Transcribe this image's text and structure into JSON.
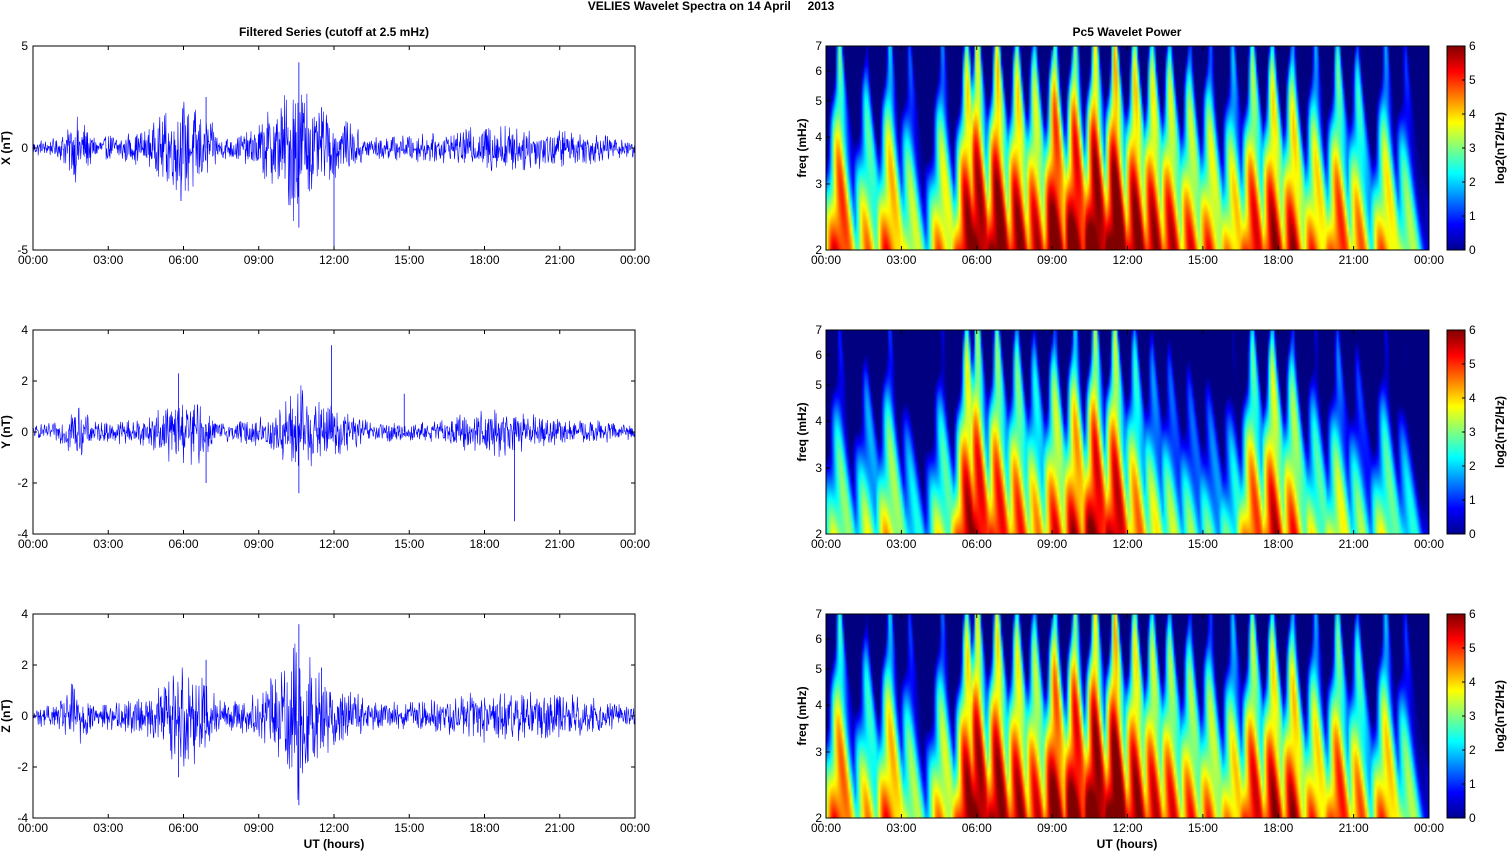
{
  "figure": {
    "suptitle": "VELIES Wavelet Spectra on 14 April     2013",
    "left_title": "Filtered Series (cutoff at 2.5 mHz)",
    "right_title": "Pc5 Wavelet Power",
    "xlabel": "UT (hours)",
    "colorbar_label": "log2(nT2/Hz)",
    "colormap": "jet"
  },
  "chart_data": [
    {
      "type": "line",
      "name": "x-filtered-series",
      "ylabel": "X (nT)",
      "ylim": [
        -5,
        5
      ],
      "yticks": [
        -5,
        0,
        5
      ],
      "xlim": [
        0,
        24
      ],
      "xticks": [
        "00:00",
        "03:00",
        "06:00",
        "09:00",
        "12:00",
        "15:00",
        "18:00",
        "21:00",
        "00:00"
      ],
      "color": "#0000ff",
      "envelope_hours": [
        0,
        1.0,
        1.7,
        2.5,
        4.5,
        5.9,
        6.6,
        7.5,
        8.5,
        9.8,
        10.6,
        11.3,
        12.0,
        13.5,
        15.0,
        16.5,
        17.5,
        18.5,
        19.5,
        21.0,
        22.5,
        24
      ],
      "envelope_amp_nT": [
        0.4,
        0.5,
        1.9,
        0.6,
        0.9,
        2.6,
        2.3,
        0.6,
        0.8,
        2.4,
        4.2,
        2.0,
        1.7,
        0.6,
        0.7,
        0.8,
        1.1,
        1.4,
        1.2,
        1.0,
        0.8,
        0.5
      ],
      "spikes": [
        [
          10.6,
          4.2
        ],
        [
          10.6,
          -3.9
        ],
        [
          12.0,
          -5.0
        ],
        [
          5.9,
          -2.6
        ],
        [
          6.9,
          2.5
        ],
        [
          11.5,
          2.0
        ]
      ]
    },
    {
      "type": "heatmap",
      "name": "x-wavelet-power",
      "ylabel": "freq (mHz)",
      "ylim": [
        2,
        7
      ],
      "yticks": [
        2,
        3,
        4,
        5,
        6,
        7
      ],
      "yscale": "log",
      "xlim": [
        0,
        24
      ],
      "xticks": [
        "00:00",
        "03:00",
        "06:00",
        "09:00",
        "12:00",
        "15:00",
        "18:00",
        "21:00",
        "00:00"
      ],
      "colorbar_range": [
        0,
        6
      ],
      "colorbar_ticks": [
        0,
        1,
        2,
        3,
        4,
        5,
        6
      ],
      "power_peaks_hours": [
        0.5,
        1.6,
        2.5,
        3.3,
        4.6,
        5.6,
        6.0,
        6.8,
        7.6,
        8.3,
        9.1,
        9.9,
        10.7,
        11.5,
        12.3,
        13.0,
        13.7,
        14.5,
        15.3,
        16.2,
        17.0,
        17.8,
        18.6,
        19.5,
        20.4,
        21.2,
        22.3,
        23.1
      ],
      "power_peaks_log2": [
        5.5,
        4.2,
        5.0,
        3.8,
        4.5,
        6.0,
        6.5,
        6.5,
        6.0,
        5.5,
        6.5,
        6.5,
        6.8,
        6.8,
        6.2,
        5.8,
        5.5,
        5.0,
        4.8,
        4.5,
        5.5,
        5.8,
        5.5,
        4.8,
        5.2,
        4.5,
        4.6,
        3.5
      ]
    },
    {
      "type": "line",
      "name": "y-filtered-series",
      "ylabel": "Y (nT)",
      "ylim": [
        -4,
        4
      ],
      "yticks": [
        -4,
        -2,
        0,
        2,
        4
      ],
      "xlim": [
        0,
        24
      ],
      "xticks": [
        "00:00",
        "03:00",
        "06:00",
        "09:00",
        "12:00",
        "15:00",
        "18:00",
        "21:00",
        "00:00"
      ],
      "color": "#0000ff",
      "envelope_hours": [
        0,
        1.0,
        1.7,
        2.5,
        4.5,
        5.9,
        6.6,
        7.5,
        8.5,
        9.8,
        10.6,
        11.3,
        12.0,
        13.5,
        15.0,
        16.5,
        17.5,
        18.5,
        19.5,
        21.0,
        22.5,
        24
      ],
      "envelope_amp_nT": [
        0.3,
        0.4,
        1.2,
        0.4,
        0.6,
        1.5,
        1.3,
        0.4,
        0.5,
        1.0,
        2.0,
        1.3,
        1.1,
        0.4,
        0.4,
        0.5,
        0.9,
        1.0,
        0.8,
        0.5,
        0.5,
        0.3
      ],
      "spikes": [
        [
          11.9,
          3.4
        ],
        [
          10.6,
          -2.4
        ],
        [
          19.2,
          -3.5
        ],
        [
          6.9,
          -2.0
        ],
        [
          5.8,
          2.3
        ],
        [
          14.8,
          1.5
        ]
      ]
    },
    {
      "type": "heatmap",
      "name": "y-wavelet-power",
      "ylabel": "freq (mHz)",
      "ylim": [
        2,
        7
      ],
      "yticks": [
        2,
        3,
        4,
        5,
        6,
        7
      ],
      "yscale": "log",
      "xlim": [
        0,
        24
      ],
      "xticks": [
        "00:00",
        "03:00",
        "06:00",
        "09:00",
        "12:00",
        "15:00",
        "18:00",
        "21:00",
        "00:00"
      ],
      "colorbar_range": [
        0,
        6
      ],
      "colorbar_ticks": [
        0,
        1,
        2,
        3,
        4,
        5,
        6
      ],
      "power_peaks_hours": [
        0.5,
        1.6,
        2.5,
        3.3,
        4.6,
        5.6,
        6.0,
        6.8,
        7.6,
        8.3,
        9.1,
        9.9,
        10.7,
        11.5,
        12.3,
        13.0,
        13.7,
        14.5,
        15.3,
        16.2,
        17.0,
        17.8,
        18.6,
        19.5,
        20.4,
        21.2,
        22.3,
        23.1
      ],
      "power_peaks_log2": [
        3.5,
        3.2,
        4.0,
        2.5,
        3.5,
        5.8,
        6.0,
        5.5,
        5.0,
        4.2,
        5.0,
        5.5,
        6.2,
        6.0,
        4.6,
        3.6,
        3.2,
        2.8,
        2.6,
        2.8,
        5.0,
        5.5,
        4.8,
        3.5,
        3.8,
        3.0,
        3.5,
        2.5
      ]
    },
    {
      "type": "line",
      "name": "z-filtered-series",
      "ylabel": "Z (nT)",
      "ylim": [
        -4,
        4
      ],
      "yticks": [
        -4,
        -2,
        0,
        2,
        4
      ],
      "xlim": [
        0,
        24
      ],
      "xticks": [
        "00:00",
        "03:00",
        "06:00",
        "09:00",
        "12:00",
        "15:00",
        "18:00",
        "21:00",
        "00:00"
      ],
      "color": "#0000ff",
      "envelope_hours": [
        0,
        1.0,
        1.7,
        2.5,
        4.5,
        5.9,
        6.6,
        7.5,
        8.5,
        9.8,
        10.6,
        11.3,
        12.0,
        13.5,
        15.0,
        16.5,
        17.5,
        18.5,
        19.5,
        21.0,
        22.5,
        24
      ],
      "envelope_amp_nT": [
        0.4,
        0.5,
        1.6,
        0.5,
        0.8,
        2.2,
        2.0,
        0.6,
        0.7,
        1.8,
        3.4,
        1.8,
        1.4,
        0.6,
        0.6,
        0.8,
        1.0,
        1.2,
        1.0,
        1.0,
        0.7,
        0.4
      ],
      "spikes": [
        [
          10.6,
          3.6
        ],
        [
          10.6,
          -3.5
        ],
        [
          5.8,
          -2.4
        ],
        [
          6.9,
          2.2
        ],
        [
          11.5,
          1.9
        ]
      ]
    },
    {
      "type": "heatmap",
      "name": "z-wavelet-power",
      "ylabel": "freq (mHz)",
      "ylim": [
        2,
        7
      ],
      "yticks": [
        2,
        3,
        4,
        5,
        6,
        7
      ],
      "yscale": "log",
      "xlim": [
        0,
        24
      ],
      "xticks": [
        "00:00",
        "03:00",
        "06:00",
        "09:00",
        "12:00",
        "15:00",
        "18:00",
        "21:00",
        "00:00"
      ],
      "colorbar_range": [
        0,
        6
      ],
      "colorbar_ticks": [
        0,
        1,
        2,
        3,
        4,
        5,
        6
      ],
      "power_peaks_hours": [
        0.5,
        1.6,
        2.5,
        3.3,
        4.6,
        5.6,
        6.0,
        6.8,
        7.6,
        8.3,
        9.1,
        9.9,
        10.7,
        11.5,
        12.3,
        13.0,
        13.7,
        14.5,
        15.3,
        16.2,
        17.0,
        17.8,
        18.6,
        19.5,
        20.4,
        21.2,
        22.3,
        23.1
      ],
      "power_peaks_log2": [
        5.2,
        4.0,
        5.0,
        3.6,
        4.3,
        6.0,
        6.5,
        6.3,
        5.8,
        5.3,
        6.3,
        6.5,
        6.8,
        6.8,
        6.0,
        5.5,
        5.2,
        4.8,
        4.6,
        4.5,
        5.6,
        5.8,
        5.6,
        4.8,
        5.3,
        4.6,
        4.8,
        3.5
      ]
    }
  ]
}
